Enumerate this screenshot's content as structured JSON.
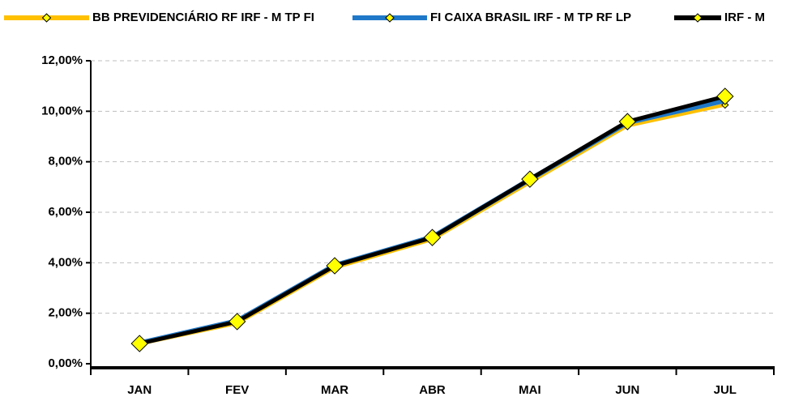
{
  "chart_data": {
    "type": "line",
    "categories": [
      "JAN",
      "FEV",
      "MAR",
      "ABR",
      "MAI",
      "JUN",
      "JUL"
    ],
    "series": [
      {
        "name": "BB PREVIDENCIÁRIO RF IRF - M TP FI",
        "color": "#ffc000",
        "values": [
          0.78,
          1.6,
          3.8,
          4.92,
          7.18,
          9.42,
          10.25
        ]
      },
      {
        "name": "FI CAIXA BRASIL IRF - M TP RF LP",
        "color": "#1f78c8",
        "values": [
          0.82,
          1.7,
          3.9,
          5.02,
          7.3,
          9.55,
          10.42
        ]
      },
      {
        "name": "IRF - M",
        "color": "#000000",
        "values": [
          0.8,
          1.67,
          3.88,
          5.0,
          7.31,
          9.59,
          10.59
        ]
      }
    ],
    "ylim": [
      0,
      12
    ],
    "yticks": [
      {
        "value": 0,
        "label": "0,00%"
      },
      {
        "value": 2,
        "label": "2,00%"
      },
      {
        "value": 4,
        "label": "4,00%"
      },
      {
        "value": 6,
        "label": "6,00%"
      },
      {
        "value": 8,
        "label": "8,00%"
      },
      {
        "value": 10,
        "label": "10,00%"
      },
      {
        "value": 12,
        "label": "12,00%"
      }
    ],
    "grid": true
  }
}
